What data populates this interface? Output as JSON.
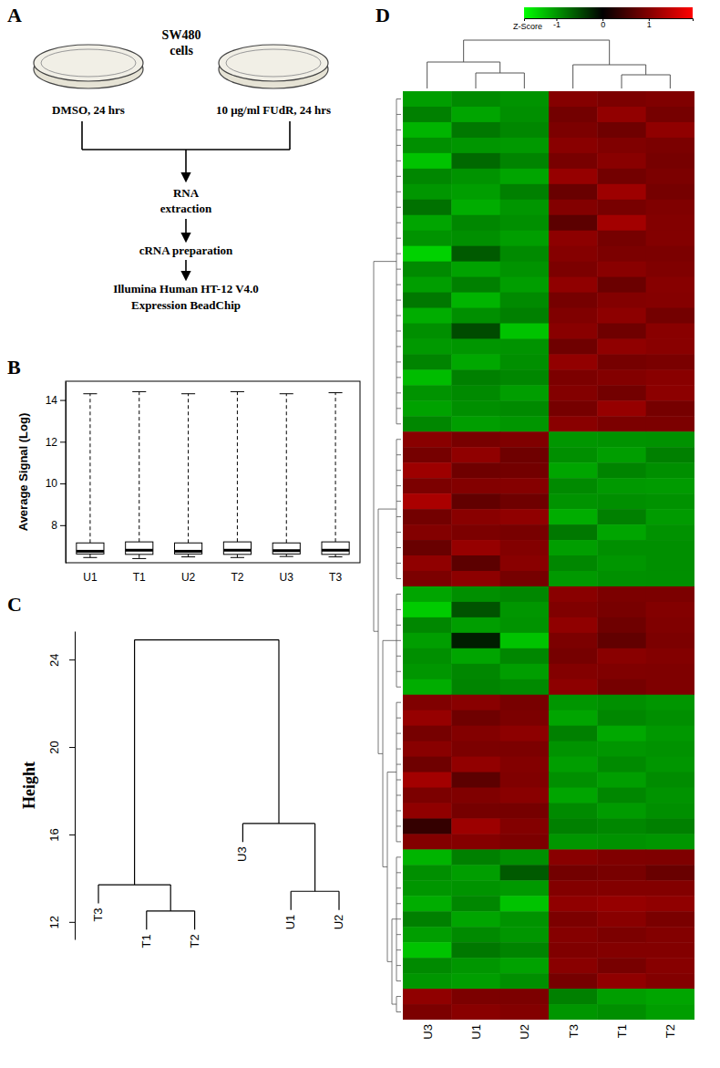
{
  "diagram": {
    "panel_label": "A",
    "cells_label": [
      "SW480",
      "cells"
    ],
    "conditions": [
      "DMSO, 24 hrs",
      "10 μg/ml FUdR, 24 hrs"
    ],
    "steps": [
      [
        "RNA",
        "extraction"
      ],
      [
        "cRNA preparation"
      ],
      [
        "Illumina Human HT-12 V4.0",
        "Expression BeadChip"
      ]
    ]
  },
  "chart_data": [
    {
      "type": "box",
      "panel_label": "B",
      "categories": [
        "U1",
        "T1",
        "U2",
        "T2",
        "U3",
        "T3"
      ],
      "min": [
        6.45,
        6.4,
        6.48,
        6.45,
        6.5,
        6.48
      ],
      "q1": [
        6.62,
        6.6,
        6.62,
        6.6,
        6.62,
        6.6
      ],
      "median": [
        6.75,
        6.8,
        6.75,
        6.8,
        6.78,
        6.8
      ],
      "q3": [
        7.15,
        7.2,
        7.15,
        7.2,
        7.15,
        7.2
      ],
      "max": [
        14.3,
        14.4,
        14.3,
        14.4,
        14.3,
        14.35
      ],
      "y_label": "Average Signal (Log)",
      "ylim": [
        6.2,
        14.9
      ],
      "yticks": [
        8,
        10,
        12,
        14
      ]
    },
    {
      "type": "dendrogram",
      "panel_label": "C",
      "labels": [
        "T3",
        "T1",
        "T2",
        "U3",
        "U1",
        "U2"
      ],
      "merges": [
        [
          -2,
          -3
        ],
        [
          -1,
          1
        ],
        [
          -5,
          -6
        ],
        [
          -4,
          3
        ],
        [
          2,
          4
        ]
      ],
      "heights": [
        12.5,
        13.7,
        13.4,
        16.5,
        24.9
      ],
      "y_label": "Height",
      "ylim": [
        11.2,
        25.3
      ],
      "yticks": [
        12,
        16,
        20,
        24
      ]
    },
    {
      "type": "heatmap",
      "panel_label": "D",
      "x": [
        "U3",
        "U1",
        "U2",
        "T3",
        "T1",
        "T2"
      ],
      "cells": [
        [
          -1.05,
          -0.92,
          -0.98,
          1.02,
          0.95,
          0.98
        ],
        [
          -0.85,
          -1.1,
          -0.95,
          0.88,
          1.12,
          0.9
        ],
        [
          -1.2,
          -0.8,
          -0.9,
          0.95,
          0.85,
          1.1
        ],
        [
          -0.95,
          -1.0,
          -1.02,
          1.05,
          0.98,
          0.94
        ],
        [
          -1.3,
          -0.7,
          -0.88,
          0.92,
          1.05,
          0.91
        ],
        [
          -0.9,
          -0.98,
          -1.1,
          1.15,
          0.88,
          0.95
        ],
        [
          -1.0,
          -1.05,
          -0.85,
          0.8,
          1.2,
          0.9
        ],
        [
          -0.75,
          -1.15,
          -1.0,
          1.0,
          0.92,
          0.98
        ],
        [
          -1.1,
          -0.9,
          -0.95,
          0.7,
          1.25,
          1.0
        ],
        [
          -0.98,
          -0.95,
          -1.05,
          1.08,
          0.9,
          1.0
        ],
        [
          -1.4,
          -0.6,
          -0.92,
          1.02,
          0.95,
          0.95
        ],
        [
          -0.92,
          -1.08,
          -0.98,
          0.95,
          1.05,
          0.98
        ],
        [
          -1.05,
          -0.85,
          -1.05,
          1.1,
          0.82,
          1.03
        ],
        [
          -0.8,
          -1.2,
          -0.92,
          0.9,
          1.0,
          1.02
        ],
        [
          -1.15,
          -0.95,
          -0.85,
          0.98,
          1.08,
          0.89
        ],
        [
          -0.95,
          -0.5,
          -1.3,
          1.05,
          0.85,
          1.05
        ],
        [
          -1.02,
          -1.0,
          -0.98,
          0.85,
          1.1,
          1.05
        ],
        [
          -0.88,
          -1.12,
          -0.95,
          1.12,
          0.9,
          0.93
        ],
        [
          -1.25,
          -0.85,
          -0.9,
          0.95,
          1.0,
          1.05
        ],
        [
          -0.98,
          -0.92,
          -1.05,
          1.0,
          0.88,
          1.07
        ],
        [
          -1.08,
          -0.95,
          -0.92,
          0.9,
          1.15,
          0.9
        ],
        [
          -0.9,
          -1.05,
          -1.0,
          1.05,
          0.95,
          0.95
        ],
        [
          1.05,
          0.92,
          0.98,
          -1.0,
          -0.98,
          -0.97
        ],
        [
          0.9,
          1.1,
          0.85,
          -0.95,
          -1.05,
          -0.85
        ],
        [
          1.2,
          0.85,
          0.88,
          -1.1,
          -0.88,
          -0.95
        ],
        [
          0.95,
          1.0,
          1.02,
          -0.92,
          -1.02,
          -1.03
        ],
        [
          1.3,
          0.75,
          0.85,
          -0.98,
          -0.95,
          -0.97
        ],
        [
          0.88,
          1.05,
          1.1,
          -1.15,
          -0.85,
          -1.03
        ],
        [
          1.0,
          0.95,
          0.92,
          -0.8,
          -1.1,
          -0.97
        ],
        [
          0.8,
          1.15,
          1.0,
          -1.05,
          -0.95,
          -0.95
        ],
        [
          1.1,
          0.7,
          1.05,
          -0.9,
          -1.0,
          -0.95
        ],
        [
          0.95,
          1.08,
          0.9,
          -1.02,
          -0.96,
          -0.95
        ],
        [
          -1.1,
          -0.95,
          -0.9,
          1.05,
          0.95,
          0.95
        ],
        [
          -1.35,
          -0.55,
          -1.0,
          0.98,
          0.92,
          1.0
        ],
        [
          -0.9,
          -1.05,
          -0.98,
          1.1,
          0.85,
          0.98
        ],
        [
          -1.05,
          -0.2,
          -1.3,
          0.95,
          0.75,
          0.95
        ],
        [
          -0.95,
          -1.1,
          -0.9,
          0.9,
          1.05,
          1.0
        ],
        [
          -1.0,
          -0.9,
          -1.05,
          1.0,
          0.98,
          0.97
        ],
        [
          -1.15,
          -0.88,
          -0.92,
          1.08,
          0.9,
          0.97
        ],
        [
          0.98,
          1.05,
          0.92,
          -1.0,
          -0.95,
          -1.0
        ],
        [
          1.15,
          0.85,
          0.95,
          -1.1,
          -0.9,
          -0.95
        ],
        [
          0.9,
          1.0,
          1.08,
          -0.85,
          -1.12,
          -1.01
        ],
        [
          1.05,
          0.95,
          0.95,
          -0.98,
          -1.0,
          -0.97
        ],
        [
          0.85,
          1.12,
          1.0,
          -1.05,
          -0.92,
          -1.0
        ],
        [
          1.25,
          0.7,
          0.98,
          -0.95,
          -1.05,
          -0.93
        ],
        [
          0.95,
          0.98,
          1.05,
          -1.1,
          -0.9,
          -0.98
        ],
        [
          1.1,
          0.9,
          0.9,
          -0.92,
          -1.03,
          -0.95
        ],
        [
          0.4,
          1.2,
          1.0,
          -0.85,
          -0.9,
          -0.85
        ],
        [
          1.0,
          1.02,
          0.95,
          -1.0,
          -0.97,
          -1.0
        ],
        [
          -1.2,
          -0.85,
          -0.95,
          1.05,
          0.98,
          0.97
        ],
        [
          -0.95,
          -1.05,
          -0.6,
          0.88,
          0.92,
          0.8
        ],
        [
          -1.0,
          -0.98,
          -1.02,
          1.0,
          1.0,
          1.0
        ],
        [
          -1.15,
          -0.9,
          -1.3,
          1.1,
          1.15,
          1.1
        ],
        [
          -0.85,
          -1.1,
          -0.98,
          0.95,
          1.05,
          0.93
        ],
        [
          -1.05,
          -0.92,
          -1.0,
          1.02,
          0.95,
          1.0
        ],
        [
          -1.3,
          -0.8,
          -0.88,
          0.98,
          1.0,
          1.0
        ],
        [
          -0.92,
          -1.0,
          -1.08,
          1.05,
          0.92,
          1.03
        ],
        [
          -1.0,
          -1.05,
          -0.95,
          0.9,
          1.1,
          1.0
        ],
        [
          1.1,
          0.95,
          0.95,
          -0.85,
          -1.05,
          -1.1
        ],
        [
          0.95,
          1.05,
          1.0,
          -1.0,
          -0.95,
          -1.05
        ]
      ],
      "colorbar": {
        "title": "Z-Score",
        "range": [
          -1.7,
          1.95
        ],
        "ticks": [
          -1,
          0,
          1
        ]
      }
    }
  ]
}
